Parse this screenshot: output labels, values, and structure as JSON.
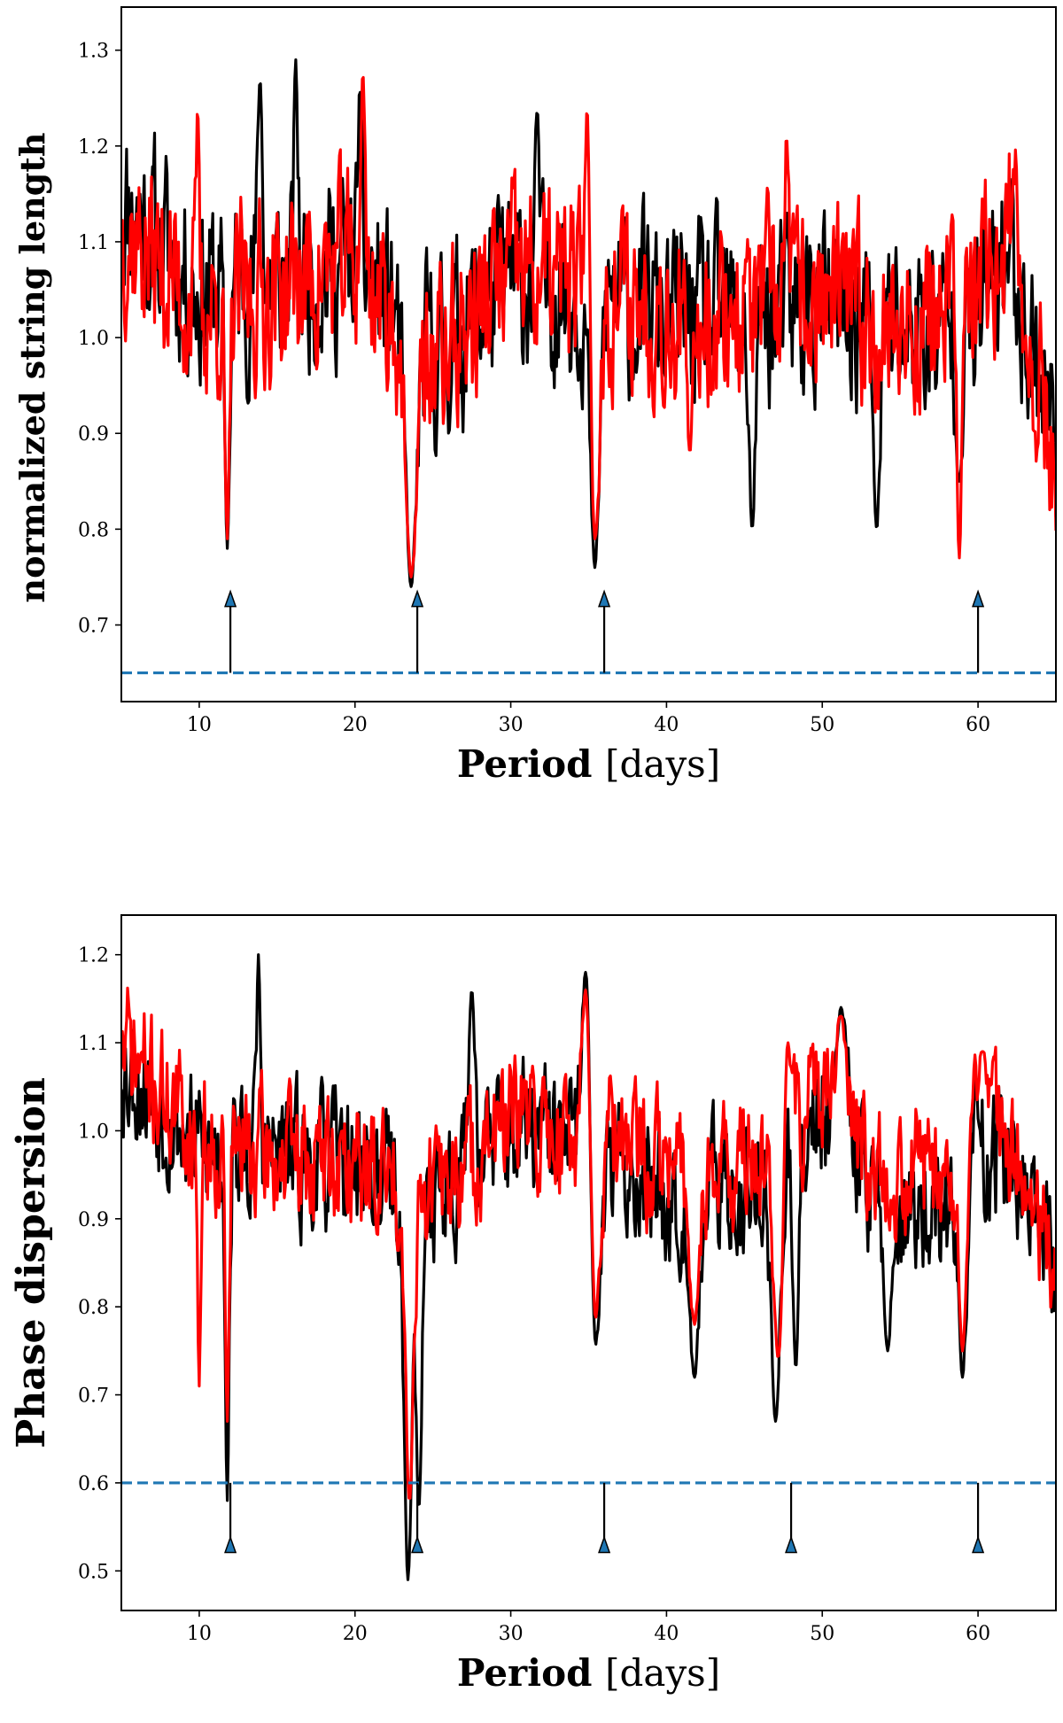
{
  "chart_data": [
    {
      "type": "line",
      "xlabel": "Period",
      "xlabel_unit": "[days]",
      "ylabel": "normalized string length",
      "xlim": [
        5,
        65
      ],
      "ylim": [
        0.62,
        1.345
      ],
      "xticks": [
        10,
        20,
        30,
        40,
        50,
        60
      ],
      "yticks": [
        0.7,
        0.8,
        0.9,
        1.0,
        1.1,
        1.2,
        1.3
      ],
      "threshold": 0.65,
      "arrows_x": [
        12,
        24,
        36,
        60
      ],
      "arrow_tip": 0.735,
      "series": [
        {
          "name": "black",
          "color": "#000000",
          "seed": 11,
          "dips": [
            [
              11.8,
              0.78,
              0.15
            ],
            [
              23.6,
              0.74,
              0.35
            ],
            [
              35.4,
              0.76,
              0.3
            ],
            [
              45.5,
              0.8,
              0.2
            ],
            [
              53.5,
              0.8,
              0.2
            ],
            [
              58.8,
              0.85,
              0.2
            ]
          ],
          "peaks": [
            [
              13.9,
              1.27,
              0.15
            ],
            [
              16.2,
              1.29,
              0.12
            ],
            [
              31.7,
              1.24,
              0.12
            ],
            [
              20.3,
              1.26,
              0.12
            ]
          ],
          "anchors": [
            [
              5,
              1.15
            ],
            [
              10,
              1.05
            ],
            [
              15,
              1.06
            ],
            [
              20,
              1.08
            ],
            [
              25,
              0.98
            ],
            [
              30,
              1.06
            ],
            [
              35,
              1.05
            ],
            [
              40,
              1.02
            ],
            [
              45,
              1.02
            ],
            [
              50,
              1.03
            ],
            [
              55,
              1.01
            ],
            [
              60,
              1.02
            ],
            [
              62,
              1.09
            ],
            [
              65,
              0.9
            ]
          ],
          "noise": 0.09
        },
        {
          "name": "red",
          "color": "#ff0000",
          "seed": 37,
          "dips": [
            [
              11.8,
              0.79,
              0.15
            ],
            [
              23.6,
              0.75,
              0.35
            ],
            [
              35.4,
              0.79,
              0.3
            ],
            [
              58.8,
              0.77,
              0.15
            ],
            [
              41.5,
              0.88,
              0.2
            ]
          ],
          "peaks": [
            [
              20.5,
              1.28,
              0.12
            ],
            [
              9.9,
              1.24,
              0.1
            ],
            [
              34.9,
              1.24,
              0.15
            ],
            [
              47.7,
              1.21,
              0.12
            ]
          ],
          "anchors": [
            [
              5,
              1.12
            ],
            [
              10,
              1.03
            ],
            [
              15,
              1.05
            ],
            [
              20,
              1.08
            ],
            [
              25,
              0.97
            ],
            [
              30,
              1.07
            ],
            [
              35,
              1.05
            ],
            [
              40,
              1.03
            ],
            [
              45,
              1.03
            ],
            [
              50,
              1.04
            ],
            [
              55,
              1.01
            ],
            [
              60,
              1.04
            ],
            [
              62,
              1.12
            ],
            [
              65,
              0.86
            ]
          ],
          "noise": 0.09
        }
      ]
    },
    {
      "type": "line",
      "xlabel": "Period",
      "xlabel_unit": "[days]",
      "ylabel": "Phase dispersion",
      "xlim": [
        5,
        65
      ],
      "ylim": [
        0.455,
        1.245
      ],
      "xticks": [
        10,
        20,
        30,
        40,
        50,
        60
      ],
      "yticks": [
        0.5,
        0.6,
        0.7,
        0.8,
        0.9,
        1.0,
        1.1,
        1.2
      ],
      "threshold": 0.6,
      "arrows_x": [
        12,
        24,
        36,
        48,
        60
      ],
      "arrow_tip": 0.538,
      "series": [
        {
          "name": "black",
          "color": "#000000",
          "seed": 53,
          "dips": [
            [
              11.8,
              0.58,
              0.12
            ],
            [
              23.4,
              0.49,
              0.25
            ],
            [
              24.1,
              0.57,
              0.2
            ],
            [
              35.4,
              0.74,
              0.3
            ],
            [
              41.8,
              0.72,
              0.3
            ],
            [
              47.0,
              0.67,
              0.3
            ],
            [
              48.3,
              0.73,
              0.2
            ],
            [
              59.0,
              0.72,
              0.25
            ],
            [
              54.2,
              0.75,
              0.25
            ]
          ],
          "peaks": [
            [
              13.8,
              1.2,
              0.12
            ],
            [
              34.8,
              1.18,
              0.25
            ],
            [
              27.5,
              1.16,
              0.2
            ],
            [
              51.2,
              1.14,
              0.35
            ]
          ],
          "anchors": [
            [
              5,
              1.08
            ],
            [
              10,
              0.98
            ],
            [
              15,
              0.97
            ],
            [
              20,
              0.96
            ],
            [
              25,
              0.93
            ],
            [
              30,
              1.0
            ],
            [
              35,
              0.98
            ],
            [
              40,
              0.93
            ],
            [
              45,
              0.93
            ],
            [
              50,
              1.03
            ],
            [
              53,
              0.95
            ],
            [
              55,
              0.9
            ],
            [
              58,
              0.9
            ],
            [
              60,
              0.98
            ],
            [
              62,
              0.97
            ],
            [
              65,
              0.83
            ]
          ],
          "noise": 0.075
        },
        {
          "name": "red",
          "color": "#ff0000",
          "seed": 71,
          "dips": [
            [
              11.8,
              0.67,
              0.12
            ],
            [
              23.5,
              0.58,
              0.25
            ],
            [
              35.4,
              0.77,
              0.3
            ],
            [
              41.8,
              0.78,
              0.3
            ],
            [
              47.2,
              0.74,
              0.35
            ],
            [
              59.0,
              0.75,
              0.25
            ],
            [
              10.0,
              0.71,
              0.1
            ]
          ],
          "peaks": [
            [
              34.8,
              1.16,
              0.25
            ],
            [
              51.2,
              1.13,
              0.35
            ],
            [
              60.3,
              1.09,
              0.3
            ],
            [
              47.8,
              1.1,
              0.2
            ]
          ],
          "anchors": [
            [
              5,
              1.1
            ],
            [
              10,
              0.99
            ],
            [
              15,
              0.97
            ],
            [
              20,
              0.96
            ],
            [
              25,
              0.93
            ],
            [
              30,
              1.01
            ],
            [
              35,
              0.99
            ],
            [
              40,
              0.96
            ],
            [
              45,
              0.96
            ],
            [
              50,
              1.04
            ],
            [
              53,
              0.97
            ],
            [
              55,
              0.95
            ],
            [
              58,
              0.96
            ],
            [
              60,
              1.03
            ],
            [
              62,
              0.99
            ],
            [
              65,
              0.84
            ]
          ],
          "noise": 0.07
        }
      ]
    }
  ]
}
